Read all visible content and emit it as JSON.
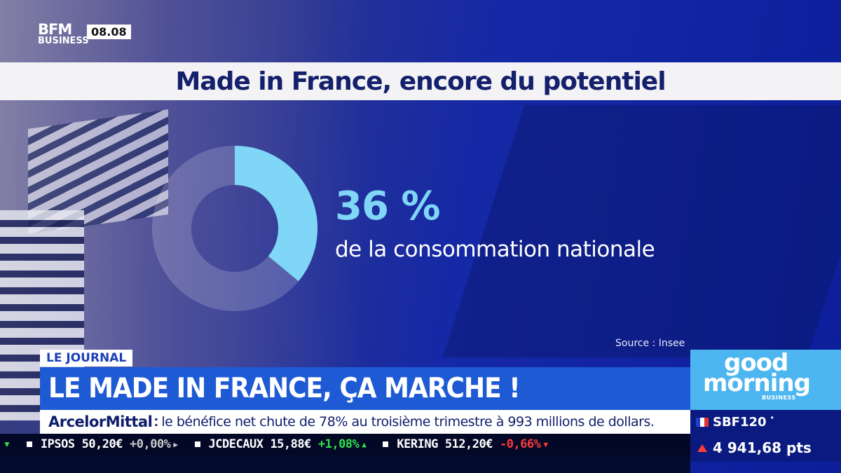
{
  "channel": {
    "logo_main": "BFM",
    "logo_sub": "BUSINESS",
    "time": "08.08"
  },
  "title": "Made in France, encore du potentiel",
  "stat": {
    "value": "36 %",
    "label": "de la consommation nationale",
    "percent": 36,
    "source": "Source : Insee"
  },
  "colors": {
    "accent": "#7fd6f6",
    "headline_bg": "#1e5ad4",
    "navy": "#14206b",
    "up": "#2fe04b",
    "down": "#ff3b3b"
  },
  "segment": {
    "tag": "LE JOURNAL",
    "headline": "LE MADE IN FRANCE, ÇA MARCHE !"
  },
  "show": {
    "line1": "good",
    "line2": "morning",
    "line3": "BUSINESS"
  },
  "news": {
    "company": "ArcelorMittal",
    "text": "le bénéfice net chute de 78% au troisième trimestre à 993 millions de dollars."
  },
  "index": {
    "name": "SBF120",
    "value": "4 941,68 pts",
    "trend": "down",
    "flag_icon": "france-flag-icon"
  },
  "stocks": [
    {
      "name": "IPSOS",
      "price": "50,20€",
      "change": "+0,00%",
      "trend": "flat"
    },
    {
      "name": "JCDECAUX",
      "price": "15,88€",
      "change": "+1,08%",
      "trend": "up"
    },
    {
      "name": "KERING",
      "price": "512,20€",
      "change": "-0,66%",
      "trend": "dn"
    }
  ]
}
